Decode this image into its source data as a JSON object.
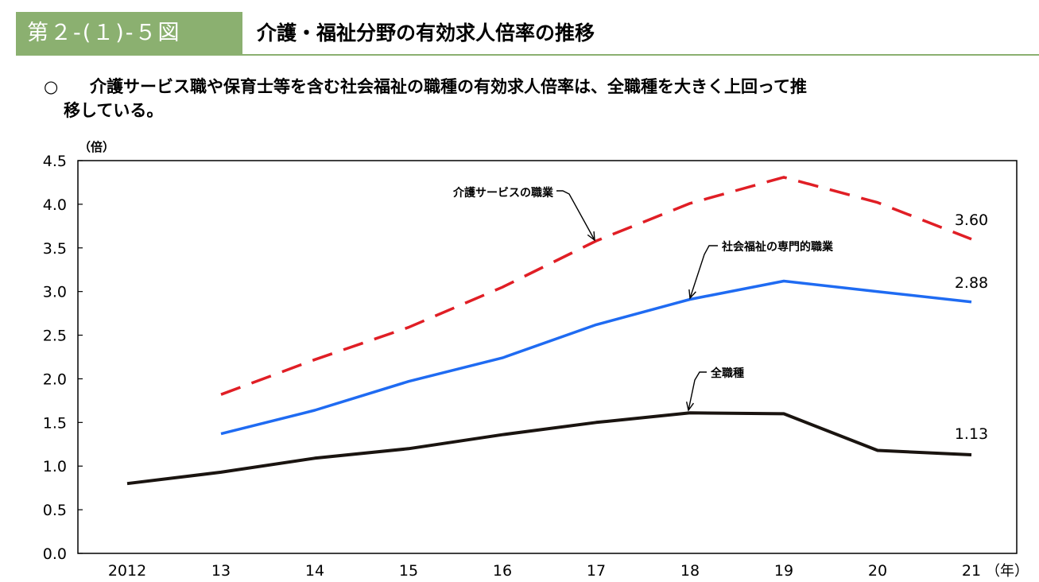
{
  "header": {
    "figure_number": "第２-(１)-５図",
    "title": "介護・福祉分野の有効求人倍率の推移"
  },
  "summary": {
    "bullet": "○",
    "line1": "介護サービス職や保育士等を含む社会福祉の職種の有効求人倍率は、全職種を大きく上回って推",
    "line2": "移している。"
  },
  "colors": {
    "header_bg": "#8bb070",
    "kaigo": "#e01e25",
    "fukushi": "#1f6bf2",
    "all": "#1a1410"
  },
  "chart_data": {
    "type": "line",
    "ylabel": "（倍）",
    "xlabel": "（年）",
    "categories": [
      "2012",
      "13",
      "14",
      "15",
      "16",
      "17",
      "18",
      "19",
      "20",
      "21"
    ],
    "ylim": [
      0,
      4.5
    ],
    "yticks": [
      "0.0",
      "0.5",
      "1.0",
      "1.5",
      "2.0",
      "2.5",
      "3.0",
      "3.5",
      "4.0",
      "4.5"
    ],
    "grid": false,
    "series": [
      {
        "name": "介護サービスの職業",
        "style": "dashed",
        "values": [
          null,
          1.82,
          2.22,
          2.59,
          3.05,
          3.58,
          4.01,
          4.31,
          4.02,
          3.6
        ],
        "end_label": "3.60"
      },
      {
        "name": "社会福祉の専門的職業",
        "style": "solid",
        "values": [
          null,
          1.37,
          1.64,
          1.97,
          2.24,
          2.62,
          2.91,
          3.12,
          3.0,
          2.88
        ],
        "end_label": "2.88"
      },
      {
        "name": "全職種",
        "style": "solid",
        "values": [
          0.8,
          0.93,
          1.09,
          1.2,
          1.36,
          1.5,
          1.61,
          1.6,
          1.18,
          1.13
        ],
        "end_label": "1.13"
      }
    ]
  }
}
